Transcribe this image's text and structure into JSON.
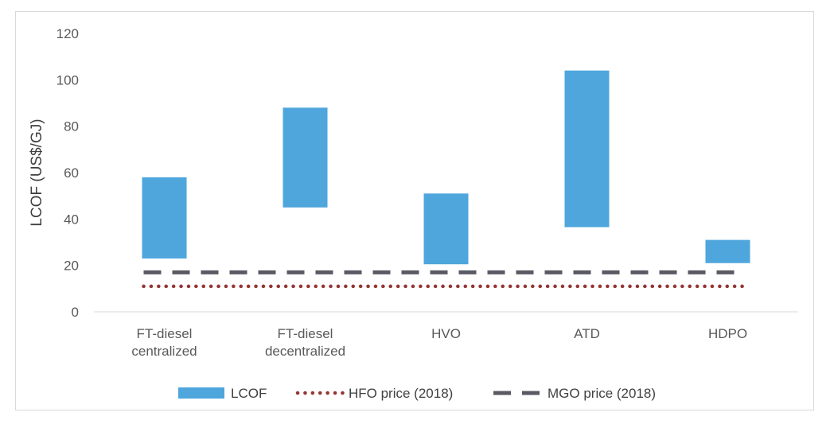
{
  "chart_data": {
    "type": "bar",
    "subtype": "floating-range",
    "title": "",
    "xlabel": "",
    "ylabel": "LCOF (US$/GJ)",
    "ylim": [
      0,
      120
    ],
    "yticks": [
      0,
      20,
      40,
      60,
      80,
      100,
      120
    ],
    "grid": false,
    "categories": [
      [
        "FT-diesel",
        "centralized"
      ],
      [
        "FT-diesel",
        "decentralized"
      ],
      [
        "HVO"
      ],
      [
        "ATD"
      ],
      [
        "HDPO"
      ]
    ],
    "series": [
      {
        "name": "LCOF",
        "kind": "range-bar",
        "color": "#4ea6dc",
        "low": [
          23,
          45,
          20.5,
          36.5,
          21
        ],
        "high": [
          58,
          88,
          51,
          104,
          31
        ]
      },
      {
        "name": "HFO price (2018)",
        "kind": "dotted-line",
        "color": "#943634",
        "value": 11
      },
      {
        "name": "MGO price (2018)",
        "kind": "dashed-line",
        "color": "#595a64",
        "value": 17
      }
    ],
    "legend_position": "bottom"
  }
}
